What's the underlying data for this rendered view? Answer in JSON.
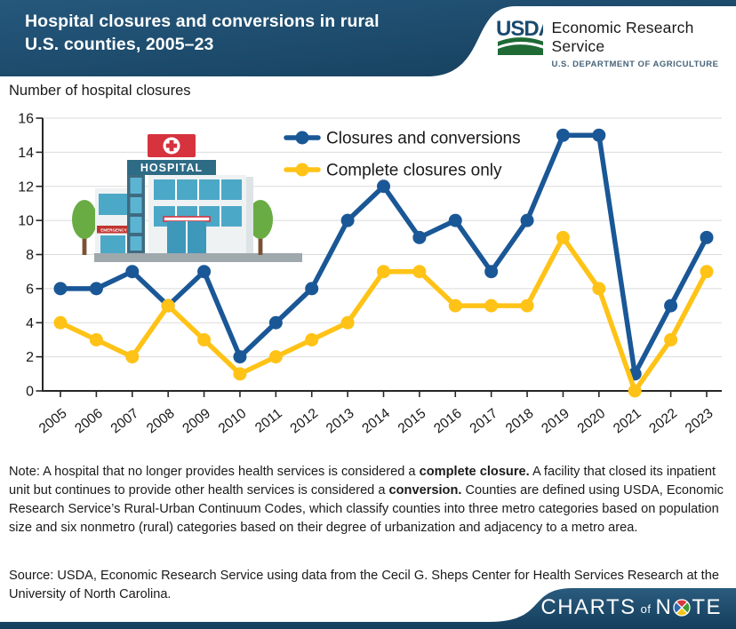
{
  "header": {
    "title_line1": "Hospital closures and conversions in rural",
    "title_line2": "U.S. counties, 2005–23",
    "usda_wordmark": "USDA",
    "agency_name": "Economic Research Service",
    "agency_sub": "U.S. DEPARTMENT OF AGRICULTURE"
  },
  "chart_data": {
    "type": "line",
    "ylabel": "Number of hospital closures",
    "categories": [
      "2005",
      "2006",
      "2007",
      "2008",
      "2009",
      "2010",
      "2011",
      "2012",
      "2013",
      "2014",
      "2015",
      "2016",
      "2017",
      "2018",
      "2019",
      "2020",
      "2021",
      "2022",
      "2023"
    ],
    "series": [
      {
        "name": "Closures and conversions",
        "color": "#1A5796",
        "values": [
          6,
          6,
          7,
          5,
          7,
          2,
          4,
          6,
          10,
          12,
          9,
          10,
          7,
          10,
          15,
          15,
          1,
          5,
          9
        ]
      },
      {
        "name": "Complete closures only",
        "color": "#FFC317",
        "values": [
          4,
          3,
          2,
          5,
          3,
          1,
          2,
          3,
          4,
          7,
          7,
          5,
          5,
          5,
          9,
          6,
          0,
          3,
          7
        ]
      }
    ],
    "ylim": [
      0,
      16
    ],
    "ytick_step": 2,
    "grid": "horizontal",
    "legend_position": "top-inside"
  },
  "illustration": {
    "hospital_sign": "HOSPITAL",
    "emergency_sign": "EMERGENCY"
  },
  "note": {
    "segments": [
      {
        "text": "Note: A hospital that no longer provides health services is considered a ",
        "bold": false
      },
      {
        "text": "complete closure.",
        "bold": true
      },
      {
        "text": " A facility that closed its inpatient unit but continues to provide other health services is considered a ",
        "bold": false
      },
      {
        "text": "conversion.",
        "bold": true
      },
      {
        "text": " Counties are defined using USDA, Economic Research Service’s Rural-Urban Continuum Codes, which classify counties into three metro categories based on population size and six nonmetro (rural) categories based on their degree of urbanization and adjacency to a metro area.",
        "bold": false
      }
    ]
  },
  "source": {
    "text": "Source: USDA, Economic Research Service using data from the Cecil G. Sheps Center for Health Services Research at the University of North Carolina."
  },
  "footer": {
    "brand_charts": "CHARTS",
    "brand_of": "of",
    "brand_note_n": "N",
    "brand_note_te": "TE"
  },
  "colors": {
    "banner_navy": "#1B4A69",
    "banner_navy_dark": "#153E5C",
    "series_blue": "#1A5796",
    "series_yellow": "#FFC317",
    "gridline": "#DBDBDB",
    "axis": "#262626",
    "usda_green": "#1F6A35",
    "pie_red": "#D6383E",
    "pie_green": "#3F9C35",
    "pie_yellow": "#F5C518",
    "pie_blue": "#2C6BB3"
  }
}
